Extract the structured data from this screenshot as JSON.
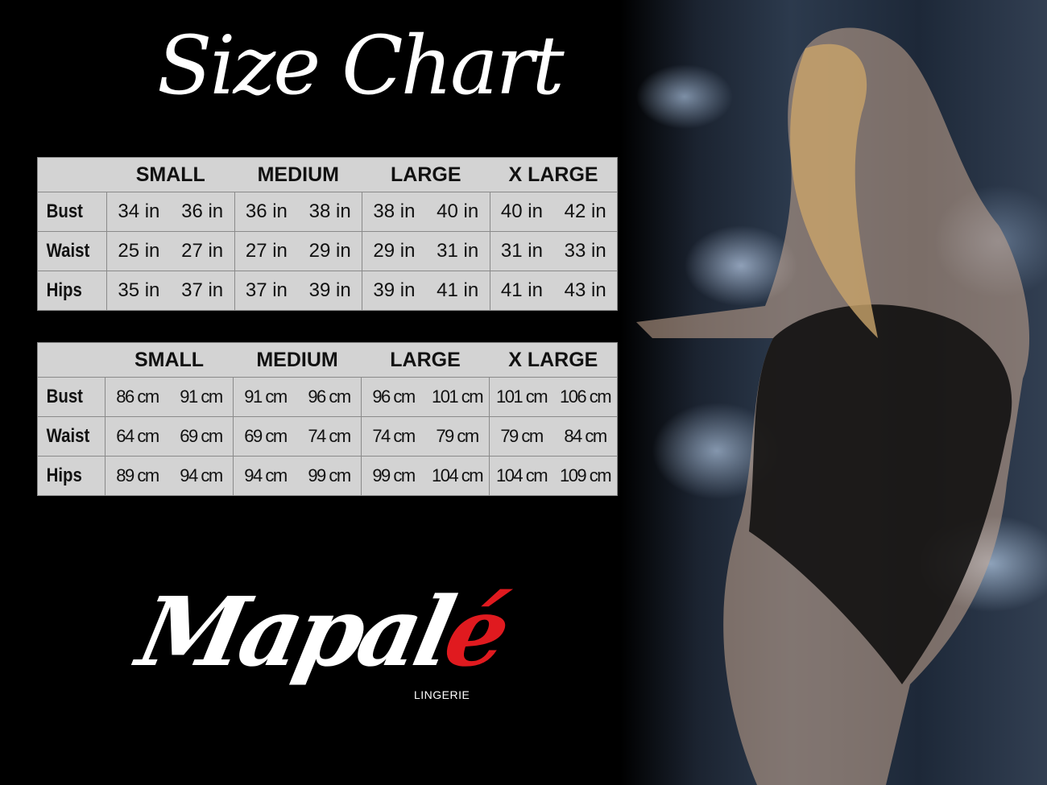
{
  "title": "Size Chart",
  "sizes": [
    "SMALL",
    "MEDIUM",
    "LARGE",
    "X LARGE"
  ],
  "chart_data": [
    {
      "type": "table",
      "unit": "in",
      "columns": [
        "SMALL",
        "MEDIUM",
        "LARGE",
        "X LARGE"
      ],
      "rows": [
        {
          "label": "Bust",
          "values": [
            "34 in",
            "36 in",
            "36 in",
            "38 in",
            "38 in",
            "40 in",
            "40 in",
            "42 in"
          ]
        },
        {
          "label": "Waist",
          "values": [
            "25 in",
            "27 in",
            "27 in",
            "29 in",
            "29 in",
            "31 in",
            "31 in",
            "33 in"
          ]
        },
        {
          "label": "Hips",
          "values": [
            "35 in",
            "37 in",
            "37 in",
            "39 in",
            "39 in",
            "41 in",
            "41 in",
            "43 in"
          ]
        }
      ]
    },
    {
      "type": "table",
      "unit": "cm",
      "columns": [
        "SMALL",
        "MEDIUM",
        "LARGE",
        "X LARGE"
      ],
      "rows": [
        {
          "label": "Bust",
          "values": [
            "86 cm",
            "91 cm",
            "91 cm",
            "96 cm",
            "96 cm",
            "101 cm",
            "101 cm",
            "106 cm"
          ]
        },
        {
          "label": "Waist",
          "values": [
            "64 cm",
            "69 cm",
            "69 cm",
            "74 cm",
            "74 cm",
            "79  cm",
            "79 cm",
            "84 cm"
          ]
        },
        {
          "label": "Hips",
          "values": [
            "89 cm",
            "94 cm",
            "94 cm",
            "99 cm",
            "99 cm",
            "104 cm",
            "104 cm",
            "109 cm"
          ]
        }
      ]
    }
  ],
  "logo": {
    "name_main": "Mapal",
    "name_accent": "é",
    "subtitle": "LINGERIE",
    "accent_color": "#e01a1f"
  },
  "photo": "model-in-black-lace-bodysuit"
}
